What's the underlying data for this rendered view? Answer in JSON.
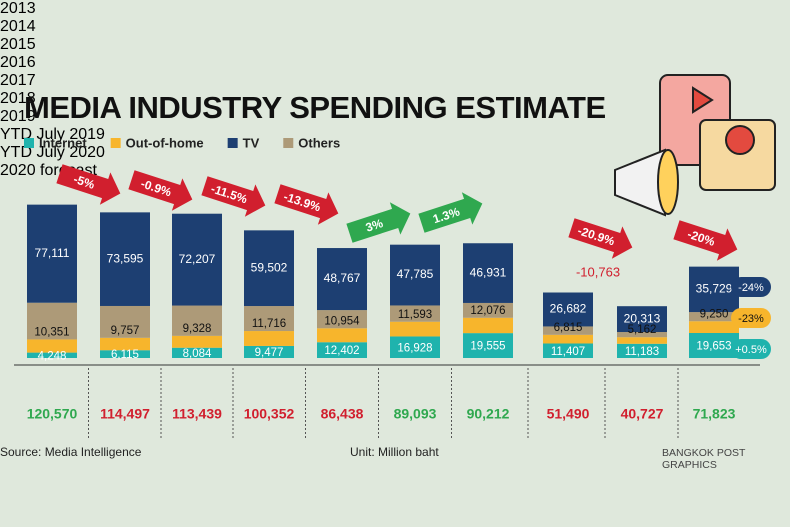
{
  "chart_data": {
    "type": "bar",
    "stacked": true,
    "title": "MEDIA INDUSTRY SPENDING ESTIMATE",
    "categories": [
      "2013",
      "2014",
      "2015",
      "2016",
      "2017",
      "2018",
      "2019",
      "YTD July 2019",
      "YTD July 2020",
      "2020 forecast"
    ],
    "series": [
      {
        "name": "Internet",
        "color": "#1fb3ad",
        "values": [
          4248,
          6115,
          8084,
          9477,
          12402,
          16928,
          19555,
          11407,
          11183,
          19653
        ],
        "value_labels": [
          "4,248",
          "6,115",
          "8,084",
          "9,477",
          "12,402",
          "16,928",
          "19,555",
          "11,407",
          "11,183",
          "19,653"
        ]
      },
      {
        "name": "Out-of-home",
        "color": "#f7b52c",
        "values": [
          10351,
          9757,
          9328,
          11716,
          10954,
          11593,
          12076,
          6815,
          5162,
          9250
        ],
        "value_labels": [
          "10,351",
          "9,757",
          "9,328",
          "11,716",
          "10,954",
          "11,593",
          "12,076",
          "6,815",
          "5,162",
          "9,250"
        ]
      },
      {
        "name": "TV",
        "color": "#1d3f72",
        "values": [
          77111,
          73595,
          72207,
          59502,
          48767,
          47785,
          46931,
          26682,
          20313,
          35729
        ],
        "value_labels": [
          "77,111",
          "73,595",
          "72,207",
          "59,502",
          "48,767",
          "47,785",
          "46,931",
          "26,682",
          "20,313",
          "35,729"
        ]
      },
      {
        "name": "Others",
        "color": "#ad9a78",
        "values": [
          28860,
          25030,
          23820,
          19657,
          14315,
          12787,
          11650,
          6586,
          4069,
          7191
        ]
      }
    ],
    "totals": [
      120570,
      114497,
      113439,
      100352,
      86438,
      89093,
      90212,
      51490,
      40727,
      71823
    ],
    "totals_labels": [
      "120,570",
      "114,497",
      "113,439",
      "100,352",
      "86,438",
      "89,093",
      "90,212",
      "51,490",
      "40,727",
      "71,823"
    ],
    "changes": [
      {
        "label": "-5%",
        "value": -5
      },
      {
        "label": "-0.9%",
        "value": -0.9
      },
      {
        "label": "-11.5%",
        "value": -11.5
      },
      {
        "label": "-13.9%",
        "value": -13.9
      },
      {
        "label": "3%",
        "value": 3
      },
      {
        "label": "1.3%",
        "value": 1.3
      },
      {
        "label": "-20.9%",
        "value": -20.9
      },
      {
        "label": "-20%",
        "value": -20
      }
    ],
    "ytd_difference": {
      "value": -10763,
      "label": "-10,763"
    },
    "forecast_changes": [
      {
        "name": "TV",
        "value": -24,
        "label": "-24%"
      },
      {
        "name": "Out-of-home",
        "value": -23,
        "label": "-23%"
      },
      {
        "name": "Internet",
        "value": 0.5,
        "label": "+0.5%"
      }
    ],
    "ylim": [
      0,
      125000
    ],
    "source": "Source: Media Intelligence",
    "unit": "Unit: Million baht",
    "credit": "BANGKOK POST GRAPHICS"
  }
}
